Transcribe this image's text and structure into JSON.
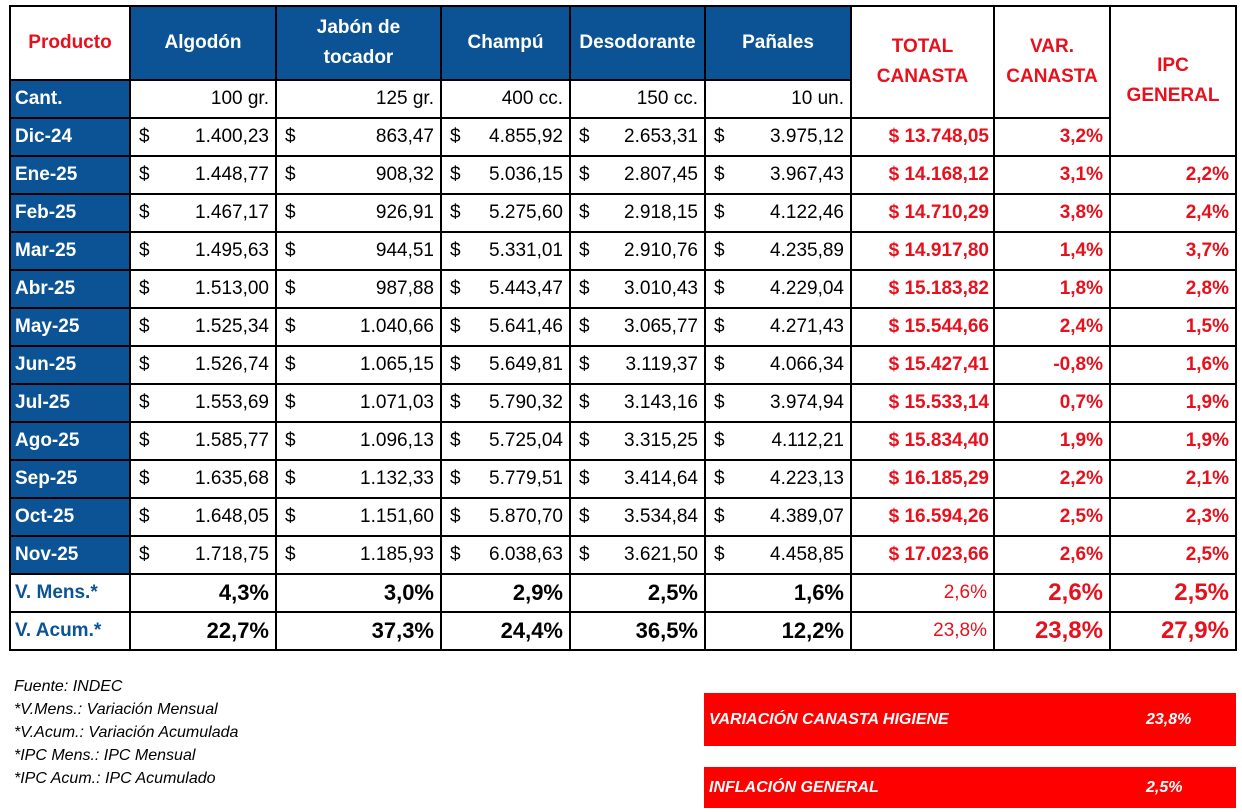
{
  "header": {
    "producto": "Producto",
    "columns": [
      "Algodón",
      "Jabón de tocador",
      "Champú",
      "Desodorante",
      "Pañales"
    ],
    "total": "TOTAL CANASTA",
    "var": "VAR. CANASTA",
    "ipc": "IPC GENERAL"
  },
  "cant": {
    "label": "Cant.",
    "values": [
      "100 gr.",
      "125 gr.",
      "400 cc.",
      "150 cc.",
      "10 un."
    ]
  },
  "currency": "$",
  "rows": [
    {
      "month": "Dic-24",
      "prices": [
        "1.400,23",
        "863,47",
        "4.855,92",
        "2.653,31",
        "3.975,12"
      ],
      "total": "$ 13.748,05",
      "var": "3,2%",
      "ipc": null
    },
    {
      "month": "Ene-25",
      "prices": [
        "1.448,77",
        "908,32",
        "5.036,15",
        "2.807,45",
        "3.967,43"
      ],
      "total": "$ 14.168,12",
      "var": "3,1%",
      "ipc": "2,2%"
    },
    {
      "month": "Feb-25",
      "prices": [
        "1.467,17",
        "926,91",
        "5.275,60",
        "2.918,15",
        "4.122,46"
      ],
      "total": "$ 14.710,29",
      "var": "3,8%",
      "ipc": "2,4%"
    },
    {
      "month": "Mar-25",
      "prices": [
        "1.495,63",
        "944,51",
        "5.331,01",
        "2.910,76",
        "4.235,89"
      ],
      "total": "$ 14.917,80",
      "var": "1,4%",
      "ipc": "3,7%"
    },
    {
      "month": "Abr-25",
      "prices": [
        "1.513,00",
        "987,88",
        "5.443,47",
        "3.010,43",
        "4.229,04"
      ],
      "total": "$ 15.183,82",
      "var": "1,8%",
      "ipc": "2,8%"
    },
    {
      "month": "May-25",
      "prices": [
        "1.525,34",
        "1.040,66",
        "5.641,46",
        "3.065,77",
        "4.271,43"
      ],
      "total": "$ 15.544,66",
      "var": "2,4%",
      "ipc": "1,5%"
    },
    {
      "month": "Jun-25",
      "prices": [
        "1.526,74",
        "1.065,15",
        "5.649,81",
        "3.119,37",
        "4.066,34"
      ],
      "total": "$ 15.427,41",
      "var": "-0,8%",
      "ipc": "1,6%"
    },
    {
      "month": "Jul-25",
      "prices": [
        "1.553,69",
        "1.071,03",
        "5.790,32",
        "3.143,16",
        "3.974,94"
      ],
      "total": "$ 15.533,14",
      "var": "0,7%",
      "ipc": "1,9%"
    },
    {
      "month": "Ago-25",
      "prices": [
        "1.585,77",
        "1.096,13",
        "5.725,04",
        "3.315,25",
        "4.112,21"
      ],
      "total": "$ 15.834,40",
      "var": "1,9%",
      "ipc": "1,9%"
    },
    {
      "month": "Sep-25",
      "prices": [
        "1.635,68",
        "1.132,33",
        "5.779,51",
        "3.414,64",
        "4.223,13"
      ],
      "total": "$ 16.185,29",
      "var": "2,2%",
      "ipc": "2,1%"
    },
    {
      "month": "Oct-25",
      "prices": [
        "1.648,05",
        "1.151,60",
        "5.870,70",
        "3.534,84",
        "4.389,07"
      ],
      "total": "$ 16.594,26",
      "var": "2,5%",
      "ipc": "2,3%"
    },
    {
      "month": "Nov-25",
      "prices": [
        "1.718,75",
        "1.185,93",
        "6.038,63",
        "3.621,50",
        "4.458,85"
      ],
      "total": "$ 17.023,66",
      "var": "2,6%",
      "ipc": "2,5%"
    }
  ],
  "summary": [
    {
      "label": "V. Mens.*",
      "values": [
        "4,3%",
        "3,0%",
        "2,9%",
        "2,5%",
        "1,6%"
      ],
      "total": "2,6%",
      "var": "2,6%",
      "ipc": "2,5%"
    },
    {
      "label": "V. Acum.*",
      "values": [
        "22,7%",
        "37,3%",
        "24,4%",
        "36,5%",
        "12,2%"
      ],
      "total": "23,8%",
      "var": "23,8%",
      "ipc": "27,9%"
    }
  ],
  "notes": [
    "Fuente: INDEC",
    "*V.Mens.: Variación Mensual",
    "*V.Acum.: Variación Acumulada",
    "*IPC Mens.: IPC Mensual",
    "*IPC Acum.: IPC Acumulado"
  ],
  "boxes": [
    {
      "label": "VARIACIÓN CANASTA HIGIENE",
      "value": "23,8%"
    },
    {
      "label": "INFLACIÓN GENERAL",
      "value": "2,5%"
    }
  ]
}
